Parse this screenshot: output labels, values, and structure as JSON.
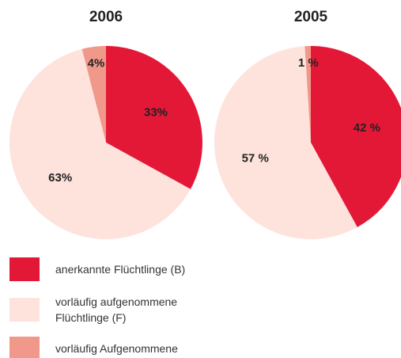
{
  "chart_data": [
    {
      "type": "pie",
      "title": "2006",
      "categories": [
        "anerkannte Flüchtlinge (B)",
        "vorläufig aufgenommene Flüchtlinge (F)",
        "vorläufig Aufgenommene"
      ],
      "values": [
        33,
        63,
        4
      ],
      "value_labels": [
        "33%",
        "63%",
        "4%"
      ],
      "colors": [
        "#e31837",
        "#fde3dc",
        "#f0998a"
      ]
    },
    {
      "type": "pie",
      "title": "2005",
      "categories": [
        "anerkannte Flüchtlinge (B)",
        "vorläufig aufgenommene Flüchtlinge (F)",
        "vorläufig Aufgenommene"
      ],
      "values": [
        42,
        57,
        1
      ],
      "value_labels": [
        "42 %",
        "57 %",
        "1 %"
      ],
      "colors": [
        "#e31837",
        "#fde3dc",
        "#f0998a"
      ]
    }
  ]
}
